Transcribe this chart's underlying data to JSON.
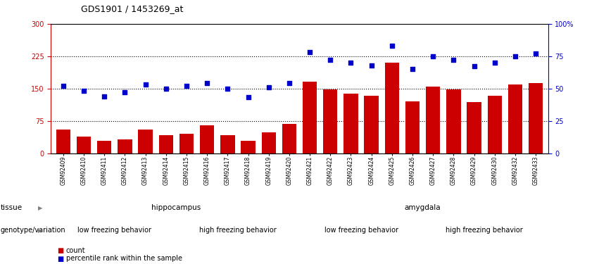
{
  "title": "GDS1901 / 1453269_at",
  "samples": [
    "GSM92409",
    "GSM92410",
    "GSM92411",
    "GSM92412",
    "GSM92413",
    "GSM92414",
    "GSM92415",
    "GSM92416",
    "GSM92417",
    "GSM92418",
    "GSM92419",
    "GSM92420",
    "GSM92421",
    "GSM92422",
    "GSM92423",
    "GSM92424",
    "GSM92425",
    "GSM92426",
    "GSM92427",
    "GSM92428",
    "GSM92429",
    "GSM92430",
    "GSM92432",
    "GSM92433"
  ],
  "counts": [
    55,
    38,
    28,
    32,
    55,
    42,
    45,
    65,
    42,
    28,
    48,
    68,
    165,
    148,
    138,
    133,
    210,
    120,
    155,
    148,
    118,
    133,
    160,
    163
  ],
  "percentile": [
    52,
    48,
    44,
    47,
    53,
    50,
    52,
    54,
    50,
    43,
    51,
    54,
    78,
    72,
    70,
    68,
    83,
    65,
    75,
    72,
    67,
    70,
    75,
    77
  ],
  "bar_color": "#cc0000",
  "dot_color": "#0000cc",
  "ylim_left": [
    0,
    300
  ],
  "ylim_right": [
    0,
    100
  ],
  "yticks_left": [
    0,
    75,
    150,
    225,
    300
  ],
  "ytick_labels_left": [
    "0",
    "75",
    "150",
    "225",
    "300"
  ],
  "yticks_right": [
    0,
    25,
    50,
    75,
    100
  ],
  "ytick_labels_right": [
    "0",
    "25",
    "50",
    "75",
    "100%"
  ],
  "hlines": [
    75,
    150,
    225
  ],
  "tissue_labels": [
    {
      "text": "hippocampus",
      "start": 0,
      "end": 11,
      "color": "#90ee90"
    },
    {
      "text": "amygdala",
      "start": 12,
      "end": 23,
      "color": "#32cd32"
    }
  ],
  "genotype_labels": [
    {
      "text": "low freezing behavior",
      "start": 0,
      "end": 5,
      "color": "#ee82ee"
    },
    {
      "text": "high freezing behavior",
      "start": 6,
      "end": 11,
      "color": "#cc44cc"
    },
    {
      "text": "low freezing behavior",
      "start": 12,
      "end": 17,
      "color": "#ee82ee"
    },
    {
      "text": "high freezing behavior",
      "start": 18,
      "end": 23,
      "color": "#cc44cc"
    }
  ],
  "tissue_row_label": "tissue",
  "genotype_row_label": "genotype/variation",
  "legend_count_label": "count",
  "legend_pct_label": "percentile rank within the sample",
  "bg_color": "#ffffff",
  "plot_bg_color": "#ffffff"
}
